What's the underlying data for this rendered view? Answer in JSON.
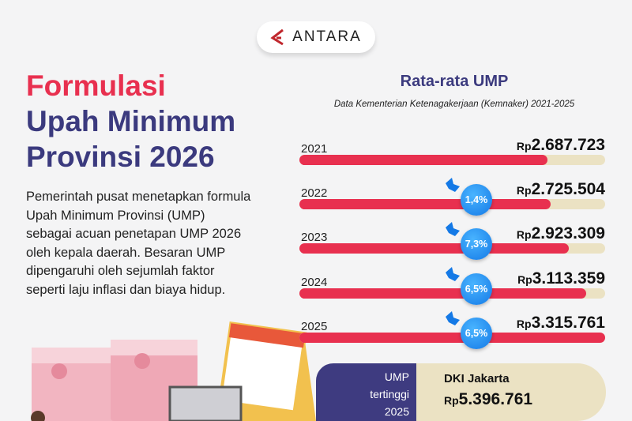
{
  "logo": {
    "text": "ANTARA",
    "color": "#c0272d"
  },
  "header": {
    "title_line1": "Formulasi",
    "title_line2": "Upah Minimum",
    "title_line3": "Provinsi 2026"
  },
  "description": "Pemerintah pusat menetapkan formula Upah Minimum Provinsi (UMP) sebagai acuan penetapan UMP 2026 oleh kepala daerah. Besaran UMP dipengaruhi oleh sejumlah faktor seperti laju inflasi dan biaya hidup.",
  "chart_data": {
    "type": "bar",
    "orientation": "horizontal",
    "title": "Rata-rata UMP",
    "subtitle": "Data Kementerian Ketenagakerjaan (Kemnaker) 2021-2025",
    "categories": [
      "2021",
      "2022",
      "2023",
      "2024",
      "2025"
    ],
    "values": [
      2687723,
      2725504,
      2923309,
      3113359,
      3315761
    ],
    "value_labels": [
      {
        "prefix": "Rp",
        "amount": "2.687.723"
      },
      {
        "prefix": "Rp",
        "amount": "2.725.504"
      },
      {
        "prefix": "Rp",
        "amount": "2.923.309"
      },
      {
        "prefix": "Rp",
        "amount": "3.113.359"
      },
      {
        "prefix": "Rp",
        "amount": "3.315.761"
      }
    ],
    "growth_labels": [
      "",
      "1,4%",
      "7,3%",
      "6,5%",
      "6,5%"
    ],
    "xlim": [
      0,
      3315761
    ],
    "colors": {
      "bar": "#e8304f",
      "track": "#ebe2c3",
      "badge": "#1e88f0"
    }
  },
  "highest": {
    "label_line1": "UMP",
    "label_line2": "tertinggi",
    "label_line3": "2025",
    "province": "DKI Jakarta",
    "prefix": "Rp",
    "amount": "5.396.761"
  }
}
